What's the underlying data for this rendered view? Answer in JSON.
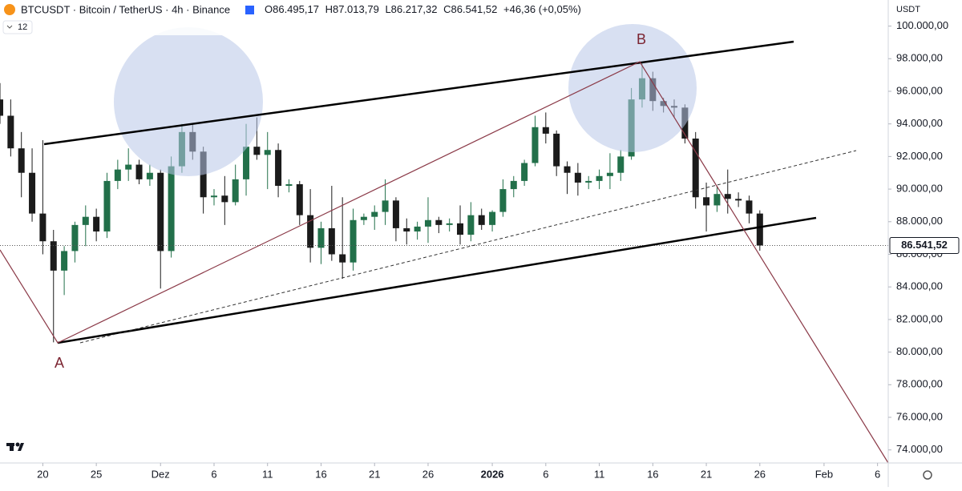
{
  "header": {
    "symbol": "BTCUSDT · Bitcoin / TetherUS · 4h · Binance",
    "ohlc": [
      "O86.495,17",
      "H87.013,79",
      "L86.217,32",
      "C86.541,52"
    ],
    "change": "+46,36 (+0,05%)",
    "indicator": "12",
    "currency": "USDT"
  },
  "chart_data": {
    "type": "candlestick",
    "x": [
      "2025-11-16",
      "2025-11-17",
      "2025-11-18",
      "2025-11-19",
      "2025-11-20",
      "2025-11-21",
      "2025-11-22",
      "2025-11-23",
      "2025-11-24",
      "2025-11-25",
      "2025-11-26",
      "2025-11-27",
      "2025-11-28",
      "2025-11-29",
      "2025-11-30",
      "2025-12-01",
      "2025-12-02",
      "2025-12-03",
      "2025-12-04",
      "2025-12-05",
      "2025-12-06",
      "2025-12-07",
      "2025-12-08",
      "2025-12-09",
      "2025-12-10",
      "2025-12-11",
      "2025-12-12",
      "2025-12-13",
      "2025-12-14",
      "2025-12-15",
      "2025-12-16",
      "2025-12-17",
      "2025-12-18",
      "2025-12-19",
      "2025-12-20",
      "2025-12-21",
      "2025-12-22",
      "2025-12-23",
      "2025-12-24",
      "2025-12-25",
      "2025-12-26",
      "2025-12-27",
      "2025-12-28",
      "2025-12-29",
      "2025-12-30",
      "2025-12-31",
      "2026-01-01",
      "2026-01-02",
      "2026-01-03",
      "2026-01-04",
      "2026-01-05",
      "2026-01-06",
      "2026-01-07",
      "2026-01-08",
      "2026-01-09",
      "2026-01-10",
      "2026-01-11",
      "2026-01-12",
      "2026-01-13",
      "2026-01-14",
      "2026-01-15",
      "2026-01-16",
      "2026-01-17",
      "2026-01-18",
      "2026-01-19",
      "2026-01-20",
      "2026-01-21",
      "2026-01-22",
      "2026-01-23",
      "2026-01-24",
      "2026-01-25",
      "2026-01-26"
    ],
    "open": [
      95500,
      94500,
      92500,
      91000,
      88500,
      86800,
      85000,
      86200,
      87800,
      88300,
      87400,
      90500,
      91200,
      91500,
      90600,
      91000,
      86200,
      91400,
      93500,
      92300,
      89500,
      89600,
      89200,
      90600,
      92600,
      92100,
      92400,
      90200,
      90300,
      88400,
      86400,
      87600,
      86000,
      85500,
      88100,
      88300,
      88600,
      89300,
      87600,
      87400,
      87700,
      88100,
      87800,
      87900,
      87200,
      88400,
      87800,
      88600,
      90000,
      90500,
      91600,
      93800,
      93400,
      91400,
      91000,
      90400,
      90500,
      90800,
      91000,
      92000,
      95500,
      96800,
      95400,
      95100,
      95000,
      93100,
      89500,
      89000,
      89700,
      89400,
      89300,
      88500
    ],
    "high": [
      96500,
      95500,
      93500,
      92500,
      93000,
      87500,
      86500,
      88000,
      89000,
      88800,
      91000,
      91800,
      92500,
      91800,
      91500,
      91200,
      92000,
      94000,
      94000,
      92600,
      90000,
      90800,
      91500,
      94000,
      94400,
      93500,
      92800,
      90600,
      90500,
      90000,
      88000,
      90200,
      89500,
      88800,
      88500,
      89000,
      90600,
      89500,
      88200,
      88000,
      89500,
      88300,
      88200,
      89000,
      89200,
      88800,
      88700,
      90600,
      90800,
      91800,
      94500,
      94700,
      93600,
      91700,
      91600,
      90800,
      91200,
      92200,
      92400,
      96200,
      97800,
      97200,
      95600,
      95500,
      95200,
      93500,
      90400,
      90200,
      91200,
      89800,
      89600,
      88700
    ],
    "low": [
      94000,
      92000,
      89500,
      88000,
      86000,
      80600,
      83500,
      85500,
      86500,
      86800,
      87000,
      90000,
      90500,
      90300,
      90200,
      83900,
      85800,
      91000,
      91800,
      88500,
      89000,
      87800,
      89000,
      89600,
      91800,
      90000,
      89500,
      89800,
      87800,
      85500,
      85400,
      85600,
      84500,
      85000,
      87800,
      87500,
      87800,
      86800,
      86600,
      86900,
      86700,
      87300,
      87400,
      86600,
      86800,
      87500,
      87400,
      88300,
      89500,
      90200,
      91400,
      92800,
      90800,
      89700,
      89600,
      90000,
      90000,
      90000,
      90500,
      91800,
      95000,
      94800,
      94700,
      94400,
      92800,
      88800,
      87400,
      88600,
      88500,
      88900,
      87900,
      86217.32
    ],
    "close": [
      94500,
      92500,
      91000,
      88500,
      86800,
      85000,
      86200,
      87800,
      88300,
      87400,
      90500,
      91200,
      91500,
      90600,
      91000,
      86200,
      91400,
      93500,
      92300,
      89500,
      89600,
      89200,
      90600,
      92600,
      92100,
      92400,
      90200,
      90300,
      88400,
      86400,
      87600,
      86000,
      85500,
      88100,
      88300,
      88600,
      89300,
      87600,
      87400,
      87700,
      88100,
      87800,
      87900,
      87200,
      88400,
      87800,
      88600,
      90000,
      90500,
      91600,
      93800,
      93400,
      91400,
      91000,
      90400,
      90500,
      90800,
      91000,
      92000,
      95500,
      96800,
      95400,
      95100,
      95000,
      93100,
      89500,
      89000,
      89700,
      89400,
      89300,
      88500,
      86541.52
    ],
    "up_color": "#22704a",
    "down_color": "#1b1b1b",
    "xlim": [
      "2025-11-16",
      "2026-02-07"
    ],
    "xticks": [
      {
        "value": "2025-11-20",
        "label": "20"
      },
      {
        "value": "2025-11-25",
        "label": "25"
      },
      {
        "value": "2025-12-01",
        "label": "Dez"
      },
      {
        "value": "2025-12-06",
        "label": "6"
      },
      {
        "value": "2025-12-11",
        "label": "11"
      },
      {
        "value": "2025-12-16",
        "label": "16"
      },
      {
        "value": "2025-12-21",
        "label": "21"
      },
      {
        "value": "2025-12-26",
        "label": "26"
      },
      {
        "value": "2026-01-01",
        "label": "2026"
      },
      {
        "value": "2026-01-06",
        "label": "6"
      },
      {
        "value": "2026-01-11",
        "label": "11"
      },
      {
        "value": "2026-01-16",
        "label": "16"
      },
      {
        "value": "2026-01-21",
        "label": "21"
      },
      {
        "value": "2026-01-26",
        "label": "26"
      },
      {
        "value": "2026-02-01",
        "label": "Feb"
      },
      {
        "value": "2026-02-06",
        "label": "6"
      }
    ],
    "ylim": [
      73200,
      101600
    ],
    "yticks": [
      {
        "value": 74000,
        "label": "74.000,00"
      },
      {
        "value": 76000,
        "label": "76.000,00"
      },
      {
        "value": 78000,
        "label": "78.000,00"
      },
      {
        "value": 80000,
        "label": "80.000,00"
      },
      {
        "value": 82000,
        "label": "82.000,00"
      },
      {
        "value": 84000,
        "label": "84.000,00"
      },
      {
        "value": 86000,
        "label": "86.000,00"
      },
      {
        "value": 88000,
        "label": "88.000,00"
      },
      {
        "value": 90000,
        "label": "90.000,00"
      },
      {
        "value": 92000,
        "label": "92.000,00"
      },
      {
        "value": 94000,
        "label": "94.000,00"
      },
      {
        "value": 96000,
        "label": "96.000,00"
      },
      {
        "value": 98000,
        "label": "98.000,00"
      },
      {
        "value": 100000,
        "label": "100.000,00"
      }
    ],
    "last_price": {
      "value": 86541.52,
      "label": "86.541,52"
    },
    "annotations": [
      "A",
      "B"
    ]
  }
}
